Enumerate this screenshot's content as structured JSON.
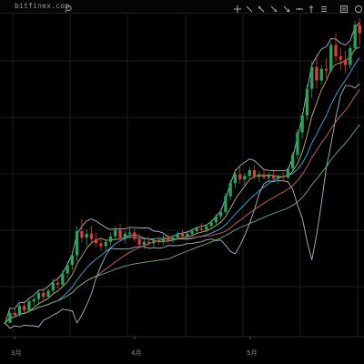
{
  "app": {
    "site": "bitfinex.com"
  },
  "toolbar": {
    "tools": [
      "crosshair-icon",
      "trendline-icon",
      "arrow-icon",
      "ray-icon",
      "arrow-down-icon",
      "horizontal-line-icon",
      "vertical-line-icon",
      "menu-icon",
      "settings-icon",
      "circle-icon"
    ]
  },
  "chart_data": {
    "type": "candlestick",
    "x_tick_labels": [
      "3月",
      "4月",
      "5月"
    ],
    "grid": true,
    "colors": {
      "up": "#26a65b",
      "down": "#e03a3a",
      "bands": "#aeb7c8",
      "ma_blue": "#4aa8e0",
      "ma_yellow": "#c8b06a",
      "ma_red": "#d06a6a",
      "ma_green": "#6fb36f"
    },
    "candles": [
      [
        1,
        1,
        1,
        1
      ],
      [
        1,
        1.1,
        1.02,
        1.08
      ],
      [
        1.08,
        1.12,
        1.04,
        1.06
      ],
      [
        1.06,
        1.16,
        1.05,
        1.14
      ],
      [
        1.14,
        1.18,
        1.08,
        1.1
      ],
      [
        1.1,
        1.2,
        1.08,
        1.18
      ],
      [
        1.18,
        1.24,
        1.14,
        1.2
      ],
      [
        1.2,
        1.28,
        1.16,
        1.26
      ],
      [
        1.26,
        1.3,
        1.18,
        1.22
      ],
      [
        1.22,
        1.3,
        1.2,
        1.28
      ],
      [
        1.28,
        1.4,
        1.26,
        1.36
      ],
      [
        1.36,
        1.42,
        1.3,
        1.34
      ],
      [
        1.34,
        1.5,
        1.32,
        1.46
      ],
      [
        1.46,
        1.6,
        1.4,
        1.56
      ],
      [
        1.56,
        1.72,
        1.5,
        1.68
      ],
      [
        1.68,
        2.1,
        1.6,
        2.02
      ],
      [
        2.02,
        2.22,
        1.85,
        1.92
      ],
      [
        1.92,
        2.05,
        1.8,
        1.98
      ],
      [
        1.98,
        2.1,
        1.86,
        1.9
      ],
      [
        1.9,
        2.0,
        1.78,
        1.84
      ],
      [
        1.84,
        1.92,
        1.74,
        1.8
      ],
      [
        1.8,
        1.9,
        1.72,
        1.86
      ],
      [
        1.86,
        2.0,
        1.8,
        1.94
      ],
      [
        1.94,
        2.1,
        1.9,
        2.04
      ],
      [
        2.04,
        2.14,
        1.88,
        1.92
      ],
      [
        1.92,
        2.02,
        1.84,
        1.98
      ],
      [
        1.98,
        2.08,
        1.9,
        2.0
      ],
      [
        2.0,
        2.06,
        1.86,
        1.9
      ],
      [
        1.9,
        1.98,
        1.78,
        1.82
      ],
      [
        1.82,
        1.9,
        1.76,
        1.86
      ],
      [
        1.86,
        1.94,
        1.8,
        1.84
      ],
      [
        1.84,
        1.92,
        1.78,
        1.88
      ],
      [
        1.88,
        1.94,
        1.82,
        1.86
      ],
      [
        1.86,
        1.96,
        1.82,
        1.92
      ],
      [
        1.92,
        1.98,
        1.84,
        1.88
      ],
      [
        1.88,
        1.96,
        1.84,
        1.92
      ],
      [
        1.92,
        2.02,
        1.88,
        1.98
      ],
      [
        1.98,
        2.04,
        1.9,
        1.94
      ],
      [
        1.94,
        2.02,
        1.9,
        1.98
      ],
      [
        1.98,
        2.06,
        1.94,
        2.02
      ],
      [
        2.02,
        2.1,
        1.98,
        2.06
      ],
      [
        2.06,
        2.14,
        2.0,
        2.04
      ],
      [
        2.04,
        2.12,
        2.0,
        2.1
      ],
      [
        2.1,
        2.2,
        2.06,
        2.16
      ],
      [
        2.16,
        2.3,
        2.1,
        2.26
      ],
      [
        2.26,
        2.4,
        2.2,
        2.34
      ],
      [
        2.34,
        2.7,
        2.3,
        2.64
      ],
      [
        2.64,
        3.0,
        2.56,
        2.92
      ],
      [
        2.92,
        3.25,
        2.8,
        3.12
      ],
      [
        3.12,
        3.3,
        2.9,
        3.0
      ],
      [
        3.0,
        3.15,
        2.86,
        3.08
      ],
      [
        3.08,
        3.3,
        2.98,
        3.22
      ],
      [
        3.22,
        3.35,
        3.0,
        3.06
      ],
      [
        3.06,
        3.2,
        2.94,
        3.12
      ],
      [
        3.12,
        3.25,
        3.0,
        3.04
      ],
      [
        3.04,
        3.16,
        2.94,
        3.1
      ],
      [
        3.1,
        3.2,
        2.98,
        3.02
      ],
      [
        3.02,
        3.12,
        2.9,
        3.08
      ],
      [
        3.08,
        3.18,
        2.96,
        3.04
      ],
      [
        3.04,
        3.3,
        3.0,
        3.26
      ],
      [
        3.26,
        3.7,
        3.2,
        3.62
      ],
      [
        3.62,
        4.4,
        3.5,
        4.3
      ],
      [
        4.3,
        5.0,
        4.1,
        4.9
      ],
      [
        4.9,
        6.2,
        4.7,
        6.0
      ],
      [
        6.0,
        7.4,
        5.6,
        7.1
      ],
      [
        7.1,
        7.8,
        6.0,
        6.4
      ],
      [
        6.4,
        7.2,
        6.2,
        7.0
      ],
      [
        7.0,
        7.6,
        6.5,
        6.9
      ],
      [
        6.9,
        8.6,
        6.8,
        8.4
      ],
      [
        8.4,
        9.2,
        7.4,
        7.7
      ],
      [
        7.7,
        8.2,
        6.9,
        7.5
      ],
      [
        7.5,
        8.0,
        6.8,
        7.2
      ],
      [
        7.2,
        8.4,
        7.0,
        8.2
      ],
      [
        8.2,
        10.1,
        8.0,
        9.8
      ],
      [
        9.8,
        10.3,
        8.4,
        9.2
      ]
    ]
  }
}
